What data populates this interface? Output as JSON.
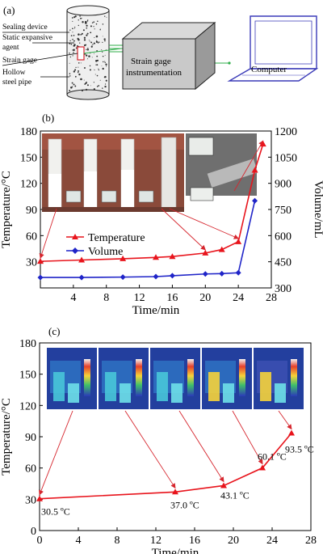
{
  "panel_a": {
    "label": "(a)",
    "callouts": [
      "Sealing device",
      "Static expansive",
      "agent",
      "Strain gage",
      "Hollow",
      "steel pipe"
    ],
    "instrument_label_1": "Strain gage",
    "instrument_label_2": "instrumentation",
    "computer_label": "Computer"
  },
  "panel_b": {
    "label": "(b)"
  },
  "panel_c": {
    "label": "(c)"
  },
  "colors": {
    "temperature": "#e8141c",
    "volume": "#1f24c8",
    "cable": "#2fae4a",
    "arrow": "#d6262e"
  },
  "chart_data": [
    {
      "type": "line",
      "xlabel": "Time/min",
      "ylabel": "Temperature/°C",
      "y2label": "Volume/mL",
      "xlim": [
        0,
        28
      ],
      "ylim": [
        0,
        180
      ],
      "y2lim": [
        300,
        1200
      ],
      "x_ticks": [
        "4",
        "8",
        "12",
        "16",
        "20",
        "24",
        "28"
      ],
      "y_ticks": [
        "30",
        "60",
        "90",
        "120",
        "150",
        "180"
      ],
      "y2_ticks": [
        "300",
        "450",
        "600",
        "750",
        "900",
        "1050",
        "1200"
      ],
      "legend_position": "center-left",
      "series": [
        {
          "name": "Temperature",
          "axis": "left",
          "marker": "triangle",
          "x": [
            0,
            5,
            10,
            14,
            16,
            20,
            22,
            24,
            26,
            27
          ],
          "y": [
            30.5,
            32,
            33.5,
            35,
            36,
            40,
            44,
            53,
            135,
            165
          ]
        },
        {
          "name": "Volume",
          "axis": "right",
          "marker": "diamond",
          "x": [
            0,
            5,
            10,
            14,
            16,
            20,
            22,
            24,
            26
          ],
          "y": [
            360,
            360,
            362,
            365,
            370,
            380,
            382,
            387,
            800
          ]
        }
      ]
    },
    {
      "type": "line",
      "xlabel": "Time/min",
      "ylabel": "Temperature/°C",
      "xlim": [
        0,
        28
      ],
      "ylim": [
        0,
        180
      ],
      "x_ticks": [
        "0",
        "4",
        "8",
        "12",
        "16",
        "20",
        "24",
        "28"
      ],
      "y_ticks": [
        "0",
        "30",
        "60",
        "90",
        "120",
        "150",
        "180"
      ],
      "series": [
        {
          "name": "Temperature",
          "x": [
            0,
            14,
            19,
            23,
            26
          ],
          "y": [
            30.5,
            37.0,
            43.1,
            60.1,
            93.5
          ],
          "labels": [
            "30.5 ºC",
            "37.0 ºC",
            "43.1 ºC",
            "60.1 ºC",
            "93.5 ºC"
          ]
        }
      ]
    }
  ]
}
